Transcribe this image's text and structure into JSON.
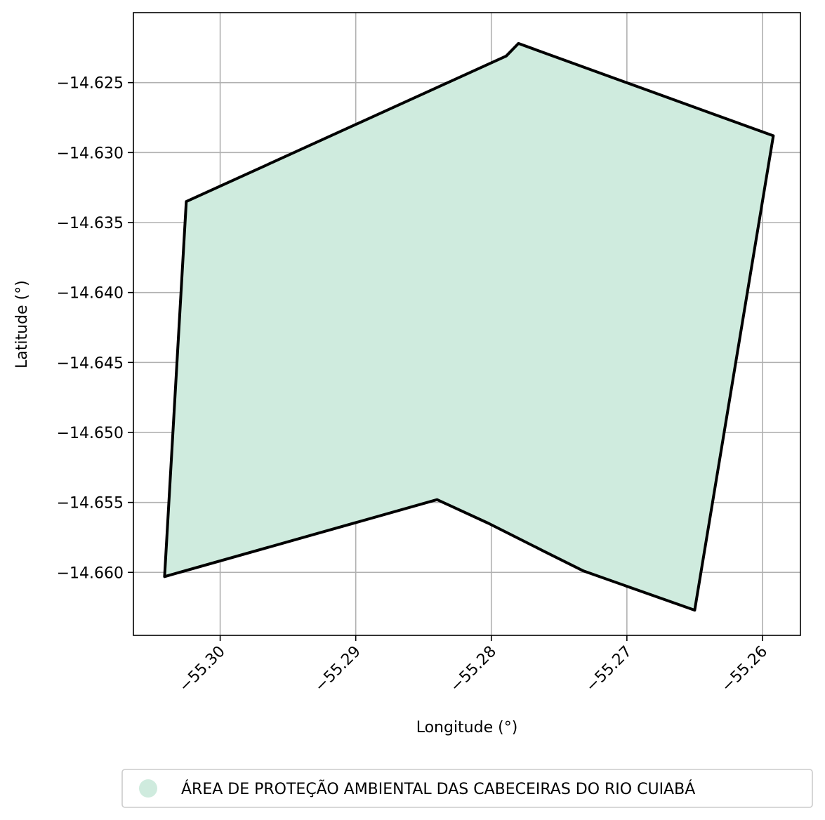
{
  "chart_data": {
    "type": "map",
    "xlabel": "Longitude (°)",
    "ylabel": "Latitude (°)",
    "xlim": [
      -55.3064,
      -55.2572
    ],
    "ylim": [
      -14.6645,
      -14.62
    ],
    "xticks": [
      -55.3,
      -55.29,
      -55.28,
      -55.27,
      -55.26
    ],
    "xtick_labels": [
      "−55.30",
      "−55.29",
      "−55.28",
      "−55.27",
      "−55.26"
    ],
    "yticks": [
      -14.625,
      -14.63,
      -14.635,
      -14.64,
      -14.645,
      -14.65,
      -14.655,
      -14.66
    ],
    "ytick_labels": [
      "−14.625",
      "−14.630",
      "−14.635",
      "−14.640",
      "−14.645",
      "−14.650",
      "−14.655",
      "−14.660"
    ],
    "grid": true,
    "legend_position": "bottom-center",
    "series": [
      {
        "name": "ÁREA DE PROTEÇÃO AMBIENTAL DAS CABECEIRAS DO RIO CUIABÁ",
        "fill_color": "#cfebde",
        "edge_color": "#000000",
        "polygon": [
          [
            -55.3041,
            -14.6603
          ],
          [
            -55.3025,
            -14.6335
          ],
          [
            -55.2789,
            -14.6231
          ],
          [
            -55.278,
            -14.6222
          ],
          [
            -55.2592,
            -14.6288
          ],
          [
            -55.265,
            -14.6627
          ],
          [
            -55.2732,
            -14.6599
          ],
          [
            -55.2761,
            -14.6585
          ],
          [
            -55.2802,
            -14.6565
          ],
          [
            -55.284,
            -14.6548
          ],
          [
            -55.3041,
            -14.6603
          ]
        ]
      }
    ]
  }
}
